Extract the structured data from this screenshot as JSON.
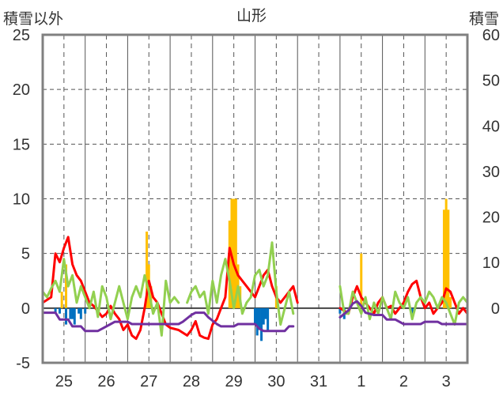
{
  "chart_data": {
    "type": "line",
    "title": "山形",
    "ylabel_left": "積雪以外",
    "ylabel_right": "積雪",
    "y_left": {
      "min": -5,
      "max": 25,
      "ticks": [
        25,
        20,
        15,
        10,
        5,
        0,
        -5
      ]
    },
    "y_right": {
      "min": -12,
      "max": 60,
      "ticks": [
        60,
        50,
        40,
        30,
        20,
        10,
        0
      ]
    },
    "x": {
      "min": 0,
      "max": 10,
      "categories": [
        "25",
        "26",
        "27",
        "28",
        "29",
        "30",
        "31",
        "1",
        "2",
        "3"
      ]
    },
    "grid": true,
    "colors": {
      "red": "#ff0000",
      "green": "#92d050",
      "purple": "#7030a0",
      "bar_orange": "#ffc000",
      "bar_blue": "#0070c0",
      "axis": "#808080",
      "grid": "#555555"
    },
    "series": [
      {
        "kind": "line",
        "axis": "left",
        "color": "#ff0000",
        "width": 3,
        "segments": [
          [
            [
              0.0,
              0.5
            ],
            [
              0.2,
              1.0
            ],
            [
              0.3,
              5.0
            ],
            [
              0.4,
              4.2
            ],
            [
              0.5,
              5.5
            ],
            [
              0.6,
              6.5
            ],
            [
              0.7,
              4.0
            ],
            [
              0.8,
              3.0
            ],
            [
              0.9,
              2.5
            ],
            [
              1.0,
              1.5
            ],
            [
              1.1,
              0.5
            ],
            [
              1.2,
              0.2
            ],
            [
              1.3,
              -0.3
            ],
            [
              1.4,
              -0.8
            ],
            [
              1.5,
              -0.5
            ],
            [
              1.6,
              0.2
            ],
            [
              1.7,
              -0.5
            ],
            [
              1.8,
              -1.0
            ],
            [
              1.9,
              -2.0
            ],
            [
              2.0,
              -1.5
            ],
            [
              2.1,
              -2.5
            ],
            [
              2.2,
              -2.8
            ],
            [
              2.3,
              -2.0
            ],
            [
              2.4,
              0.0
            ],
            [
              2.5,
              2.5
            ],
            [
              2.6,
              1.0
            ],
            [
              2.7,
              0.5
            ],
            [
              2.8,
              -0.5
            ],
            [
              2.9,
              -1.5
            ],
            [
              3.0,
              -1.8
            ],
            [
              3.2,
              -2.0
            ],
            [
              3.4,
              -2.5
            ],
            [
              3.5,
              -2.0
            ],
            [
              3.6,
              -1.2
            ],
            [
              3.7,
              -2.5
            ],
            [
              3.8,
              -2.7
            ],
            [
              3.9,
              -2.8
            ],
            [
              4.0,
              -1.5
            ],
            [
              4.1,
              -1.0
            ],
            [
              4.2,
              0.0
            ],
            [
              4.3,
              1.0
            ],
            [
              4.4,
              5.5
            ],
            [
              4.5,
              4.0
            ],
            [
              4.6,
              3.0
            ],
            [
              4.7,
              2.5
            ],
            [
              4.8,
              2.0
            ],
            [
              4.9,
              1.5
            ],
            [
              5.0,
              1.0
            ],
            [
              5.1,
              2.0
            ],
            [
              5.2,
              3.0
            ],
            [
              5.3,
              3.5
            ],
            [
              5.4,
              2.0
            ],
            [
              5.5,
              1.0
            ],
            [
              5.6,
              0.5
            ],
            [
              5.7,
              1.0
            ],
            [
              5.8,
              1.5
            ],
            [
              5.9,
              2.0
            ],
            [
              6.0,
              0.5
            ]
          ],
          [
            [
              7.0,
              0.0
            ],
            [
              7.2,
              -0.5
            ],
            [
              7.3,
              1.0
            ],
            [
              7.4,
              2.0
            ],
            [
              7.5,
              1.0
            ],
            [
              7.6,
              0.5
            ],
            [
              7.7,
              0.0
            ],
            [
              7.8,
              -0.5
            ],
            [
              7.9,
              0.5
            ],
            [
              8.0,
              1.0
            ],
            [
              8.1,
              0.0
            ],
            [
              8.2,
              0.2
            ],
            [
              8.3,
              -0.5
            ],
            [
              8.4,
              0.0
            ],
            [
              8.5,
              0.5
            ],
            [
              8.6,
              1.5
            ],
            [
              8.7,
              2.2
            ],
            [
              8.8,
              2.5
            ],
            [
              8.9,
              1.0
            ],
            [
              9.0,
              0.0
            ],
            [
              9.1,
              0.5
            ],
            [
              9.2,
              -0.5
            ],
            [
              9.3,
              0.0
            ],
            [
              9.4,
              0.5
            ],
            [
              9.5,
              1.8
            ],
            [
              9.6,
              1.5
            ],
            [
              9.7,
              0.5
            ],
            [
              9.8,
              -0.5
            ],
            [
              9.9,
              0.0
            ],
            [
              10.0,
              -0.5
            ]
          ]
        ]
      },
      {
        "kind": "line",
        "axis": "left",
        "color": "#92d050",
        "width": 3,
        "segments": [
          [
            [
              0.0,
              1.5
            ],
            [
              0.1,
              1.0
            ],
            [
              0.2,
              1.8
            ],
            [
              0.3,
              2.5
            ],
            [
              0.4,
              1.5
            ],
            [
              0.5,
              4.5
            ],
            [
              0.6,
              2.0
            ],
            [
              0.7,
              3.0
            ],
            [
              0.8,
              0.5
            ],
            [
              0.9,
              2.0
            ],
            [
              1.0,
              1.0
            ],
            [
              1.1,
              0.0
            ],
            [
              1.2,
              1.5
            ],
            [
              1.3,
              -0.8
            ],
            [
              1.4,
              2.0
            ],
            [
              1.5,
              1.0
            ],
            [
              1.6,
              -1.0
            ],
            [
              1.7,
              0.5
            ],
            [
              1.8,
              2.0
            ],
            [
              1.9,
              0.5
            ],
            [
              2.0,
              -1.0
            ],
            [
              2.1,
              1.0
            ],
            [
              2.2,
              2.0
            ],
            [
              2.3,
              1.0
            ],
            [
              2.4,
              3.0
            ],
            [
              2.5,
              1.5
            ],
            [
              2.6,
              -0.5
            ],
            [
              2.7,
              0.5
            ],
            [
              2.8,
              -2.5
            ],
            [
              2.9,
              2.5
            ],
            [
              3.0,
              0.5
            ],
            [
              3.1,
              1.0
            ],
            [
              3.2,
              0.5
            ]
          ],
          [
            [
              3.4,
              0.5
            ],
            [
              3.5,
              1.5
            ],
            [
              3.6,
              2.0
            ],
            [
              3.7,
              1.0
            ],
            [
              3.8,
              1.5
            ],
            [
              3.9,
              -0.5
            ],
            [
              4.0,
              2.5
            ],
            [
              4.1,
              0.5
            ],
            [
              4.2,
              3.0
            ],
            [
              4.3,
              4.5
            ],
            [
              4.4,
              2.5
            ],
            [
              4.5,
              0.0
            ],
            [
              4.6,
              2.0
            ],
            [
              4.7,
              -0.5
            ],
            [
              4.8,
              0.5
            ],
            [
              4.9,
              1.0
            ],
            [
              5.0,
              3.0
            ],
            [
              5.1,
              3.5
            ],
            [
              5.2,
              2.0
            ],
            [
              5.3,
              3.0
            ],
            [
              5.4,
              6.0
            ],
            [
              5.5,
              1.5
            ],
            [
              5.6,
              -1.5
            ],
            [
              5.7,
              0.0
            ],
            [
              5.8,
              1.5
            ],
            [
              5.9,
              -0.5
            ]
          ],
          [
            [
              7.0,
              2.0
            ],
            [
              7.1,
              -0.5
            ],
            [
              7.2,
              -0.5
            ],
            [
              7.3,
              1.5
            ],
            [
              7.4,
              0.5
            ],
            [
              7.5,
              -0.5
            ],
            [
              7.6,
              1.0
            ],
            [
              7.7,
              -1.0
            ],
            [
              7.8,
              0.5
            ],
            [
              7.9,
              -0.5
            ],
            [
              8.0,
              1.0
            ],
            [
              8.1,
              0.0
            ],
            [
              8.2,
              -1.0
            ],
            [
              8.3,
              1.5
            ],
            [
              8.4,
              0.5
            ],
            [
              8.5,
              0.0
            ],
            [
              8.6,
              1.0
            ],
            [
              8.7,
              -1.0
            ],
            [
              8.8,
              0.5
            ],
            [
              8.9,
              1.0
            ],
            [
              9.0,
              0.5
            ],
            [
              9.1,
              1.5
            ],
            [
              9.2,
              1.0
            ],
            [
              9.3,
              0.0
            ],
            [
              9.4,
              1.0
            ],
            [
              9.5,
              0.5
            ],
            [
              9.6,
              -0.5
            ],
            [
              9.7,
              -1.5
            ],
            [
              9.8,
              0.5
            ],
            [
              9.9,
              1.0
            ],
            [
              10.0,
              0.5
            ]
          ]
        ]
      },
      {
        "kind": "line",
        "axis": "right",
        "color": "#7030a0",
        "width": 3,
        "segments": [
          [
            [
              0.0,
              -1.0
            ],
            [
              0.3,
              -1.0
            ],
            [
              0.4,
              -2.5
            ],
            [
              0.6,
              -2.5
            ],
            [
              0.7,
              -4.0
            ],
            [
              0.9,
              -4.0
            ],
            [
              1.0,
              -5.0
            ],
            [
              1.3,
              -5.0
            ],
            [
              1.4,
              -4.5
            ],
            [
              1.6,
              -3.5
            ],
            [
              1.7,
              -3.0
            ],
            [
              2.0,
              -3.0
            ],
            [
              2.1,
              -3.5
            ],
            [
              3.0,
              -3.5
            ],
            [
              3.2,
              -3.5
            ],
            [
              3.3,
              -3.0
            ],
            [
              3.5,
              -1.5
            ],
            [
              3.6,
              -1.0
            ],
            [
              3.8,
              -1.0
            ],
            [
              3.9,
              -2.0
            ],
            [
              4.1,
              -3.5
            ],
            [
              4.2,
              -4.0
            ],
            [
              4.5,
              -4.0
            ],
            [
              4.6,
              -3.5
            ],
            [
              5.0,
              -3.5
            ],
            [
              5.1,
              -4.5
            ],
            [
              5.2,
              -5.0
            ],
            [
              5.7,
              -5.0
            ],
            [
              5.8,
              -4.0
            ],
            [
              5.9,
              -4.0
            ]
          ],
          [
            [
              7.0,
              -2.0
            ],
            [
              7.2,
              -0.5
            ],
            [
              7.3,
              1.0
            ],
            [
              7.4,
              1.5
            ],
            [
              7.5,
              0.5
            ],
            [
              7.6,
              -1.0
            ],
            [
              7.8,
              -1.5
            ],
            [
              8.0,
              -1.5
            ],
            [
              8.1,
              -2.5
            ],
            [
              8.3,
              -2.5
            ],
            [
              8.5,
              -3.5
            ],
            [
              8.9,
              -3.5
            ],
            [
              9.0,
              -3.0
            ],
            [
              9.3,
              -3.0
            ],
            [
              9.4,
              -3.5
            ],
            [
              10.0,
              -3.5
            ]
          ]
        ]
      },
      {
        "kind": "bar",
        "axis": "left",
        "color": "#ffc000",
        "points": [
          [
            0.45,
            1.5
          ],
          [
            0.55,
            4.0
          ],
          [
            2.45,
            7.0
          ],
          [
            2.5,
            4.0
          ],
          [
            2.55,
            2.0
          ],
          [
            4.4,
            8.0
          ],
          [
            4.45,
            10.0
          ],
          [
            4.5,
            10.0
          ],
          [
            4.55,
            10.0
          ],
          [
            4.6,
            4.0
          ],
          [
            4.65,
            2.0
          ],
          [
            5.5,
            2.0
          ],
          [
            7.5,
            5.0
          ],
          [
            9.45,
            9.0
          ],
          [
            9.5,
            10.0
          ],
          [
            9.55,
            9.0
          ],
          [
            9.6,
            1.0
          ]
        ]
      },
      {
        "kind": "bar",
        "axis": "left",
        "color": "#0070c0",
        "points": [
          [
            0.3,
            -0.5
          ],
          [
            0.4,
            -0.5
          ],
          [
            0.55,
            -1.5
          ],
          [
            0.65,
            -1.0
          ],
          [
            0.7,
            -1.0
          ],
          [
            0.75,
            -1.5
          ],
          [
            0.85,
            -0.5
          ],
          [
            0.9,
            -1.0
          ],
          [
            1.0,
            -0.5
          ],
          [
            5.0,
            -1.5
          ],
          [
            5.05,
            -2.5
          ],
          [
            5.1,
            -2.0
          ],
          [
            5.15,
            -3.0
          ],
          [
            5.2,
            -1.5
          ],
          [
            5.25,
            -1.0
          ],
          [
            5.3,
            -2.0
          ],
          [
            7.0,
            -0.5
          ],
          [
            7.1,
            -1.0
          ],
          [
            8.7,
            -0.5
          ]
        ]
      }
    ]
  }
}
